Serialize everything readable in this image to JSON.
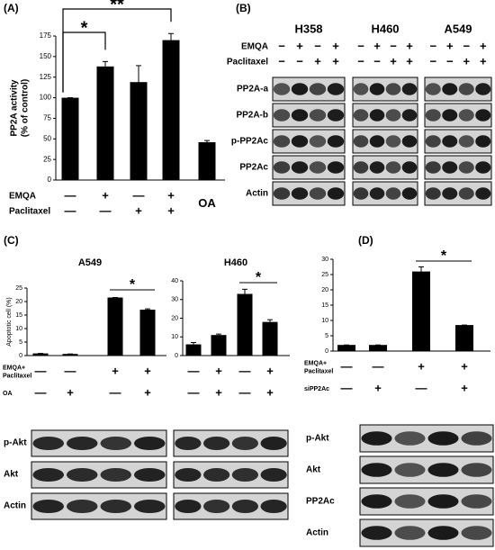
{
  "panel_labels": [
    "(A)",
    "(B)",
    "(C)",
    "(D)"
  ],
  "chart_data": [
    {
      "type": "bar",
      "ylabel": [
        "PP2A activity",
        "(% of control)"
      ],
      "categories": [
        null,
        null,
        null,
        null,
        "OA"
      ],
      "values": [
        100,
        138,
        119,
        170,
        46
      ],
      "errors": [
        0,
        6,
        20,
        8,
        2
      ],
      "color": "#000000",
      "ylim": [
        0,
        175
      ],
      "yticks": [
        0,
        25,
        50,
        75,
        100,
        125,
        150,
        175
      ],
      "conditions": [
        {
          "label": "EMQA",
          "signs": [
            "—",
            "+",
            "—",
            "+"
          ]
        },
        {
          "label": "Paclitaxel",
          "signs": [
            "—",
            "—",
            "+",
            "+"
          ]
        }
      ],
      "annotations": [
        "*",
        "**"
      ]
    },
    {
      "type": "bar",
      "title": "A549",
      "ylabel": [
        "Apoptotic cell (%)"
      ],
      "values": [
        0.8,
        0.6,
        21.5,
        17
      ],
      "errors": [
        0,
        0,
        0,
        0.3
      ],
      "color": "#000000",
      "ylim": [
        0,
        25
      ],
      "yticks": [
        0,
        5,
        10,
        15,
        20,
        25
      ],
      "conditions": [
        {
          "label": [
            "EMQA+",
            "Paclitaxel"
          ],
          "signs": [
            "—",
            "—",
            "+",
            "+"
          ]
        },
        {
          "label": [
            "OA"
          ],
          "signs": [
            "—",
            "+",
            "—",
            "+"
          ]
        }
      ],
      "annotations": [
        "*"
      ]
    },
    {
      "type": "bar",
      "title": "H460",
      "values": [
        6,
        11,
        33,
        18
      ],
      "errors": [
        1,
        0.5,
        2.5,
        1.2
      ],
      "color": "#000000",
      "ylim": [
        0,
        40
      ],
      "yticks": [
        0,
        10,
        20,
        30,
        40
      ],
      "conditions": [
        {
          "signs": [
            "—",
            "+",
            "—",
            "+"
          ]
        },
        {
          "signs": [
            "—",
            "+",
            "—",
            "+"
          ]
        }
      ],
      "annotations": [
        "*"
      ]
    },
    {
      "type": "bar",
      "values": [
        2,
        2,
        26,
        8.5
      ],
      "errors": [
        0,
        0,
        1.5,
        0
      ],
      "color": "#000000",
      "ylim": [
        0,
        30
      ],
      "yticks": [
        0,
        5,
        10,
        15,
        20,
        25,
        30
      ],
      "conditions": [
        {
          "label": [
            "EMQA+",
            "Paclitaxel"
          ],
          "signs": [
            "—",
            "—",
            "+",
            "+"
          ]
        },
        {
          "label": [
            "siPP2Ac"
          ],
          "signs": [
            "—",
            "+",
            "—",
            "+"
          ]
        }
      ],
      "annotations": [
        "*"
      ]
    }
  ],
  "blot_b": {
    "cell_lines": [
      {
        "name": "H358",
        "signs": [
          [
            "−",
            "+",
            "−",
            "+"
          ],
          [
            "−",
            "−",
            "+",
            "+"
          ]
        ]
      },
      {
        "name": "H460",
        "signs": [
          [
            "−",
            "+",
            "−",
            "+"
          ],
          [
            "−",
            "−",
            "+",
            "+"
          ]
        ]
      },
      {
        "name": "A549",
        "signs": [
          [
            "−",
            "+",
            "−",
            "+"
          ],
          [
            "−",
            "−",
            "+",
            "+"
          ]
        ]
      }
    ],
    "condition_labels": [
      "EMQA",
      "Paclitaxel"
    ],
    "rows": [
      "PP2A-a",
      "PP2A-b",
      "p-PP2Ac",
      "PP2Ac",
      "Actin"
    ]
  },
  "blot_c": {
    "rows": [
      "p-Akt",
      "Akt",
      "Actin"
    ]
  },
  "blot_d": {
    "rows": [
      "p-Akt",
      "Akt",
      "PP2Ac",
      "Actin"
    ]
  }
}
